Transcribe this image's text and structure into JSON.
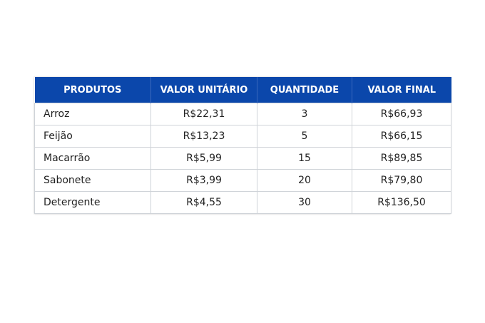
{
  "table": {
    "header": [
      "PRODUTOS",
      "VALOR UNITÁRIO",
      "QUANTIDADE",
      "VALOR FINAL"
    ],
    "rows": [
      [
        "Arroz",
        "R$22,31",
        "3",
        "R$66,93"
      ],
      [
        "Feijão",
        "R$13,23",
        "5",
        "R$66,15"
      ],
      [
        "Macarrão",
        "R$5,99",
        "15",
        "R$89,85"
      ],
      [
        "Sabonete",
        "R$3,99",
        "20",
        "R$79,80"
      ],
      [
        "Detergente",
        "R$4,55",
        "30",
        "R$136,50"
      ]
    ]
  }
}
